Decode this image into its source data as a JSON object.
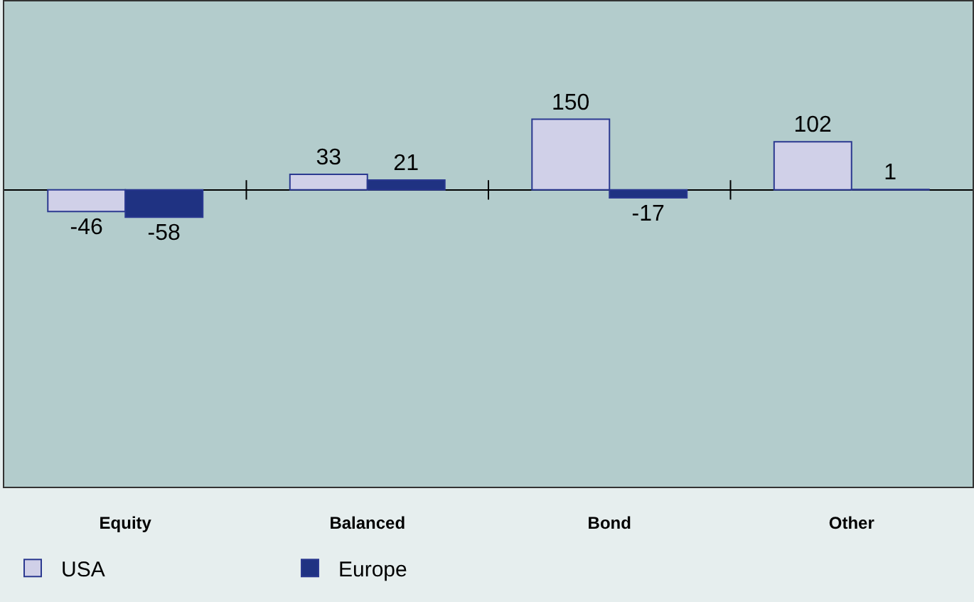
{
  "chart_data": {
    "type": "bar",
    "categories": [
      "Equity",
      "Balanced",
      "Bond",
      "Other"
    ],
    "series": [
      {
        "name": "USA",
        "color": "#d0d0e8",
        "values": [
          -46,
          33,
          150,
          102
        ]
      },
      {
        "name": "Europe",
        "color": "#1f3282",
        "values": [
          -58,
          21,
          -17,
          1
        ]
      }
    ],
    "ylim": [
      -630,
      400
    ],
    "data_labels": true,
    "grid": false,
    "legend": "bottom left"
  }
}
